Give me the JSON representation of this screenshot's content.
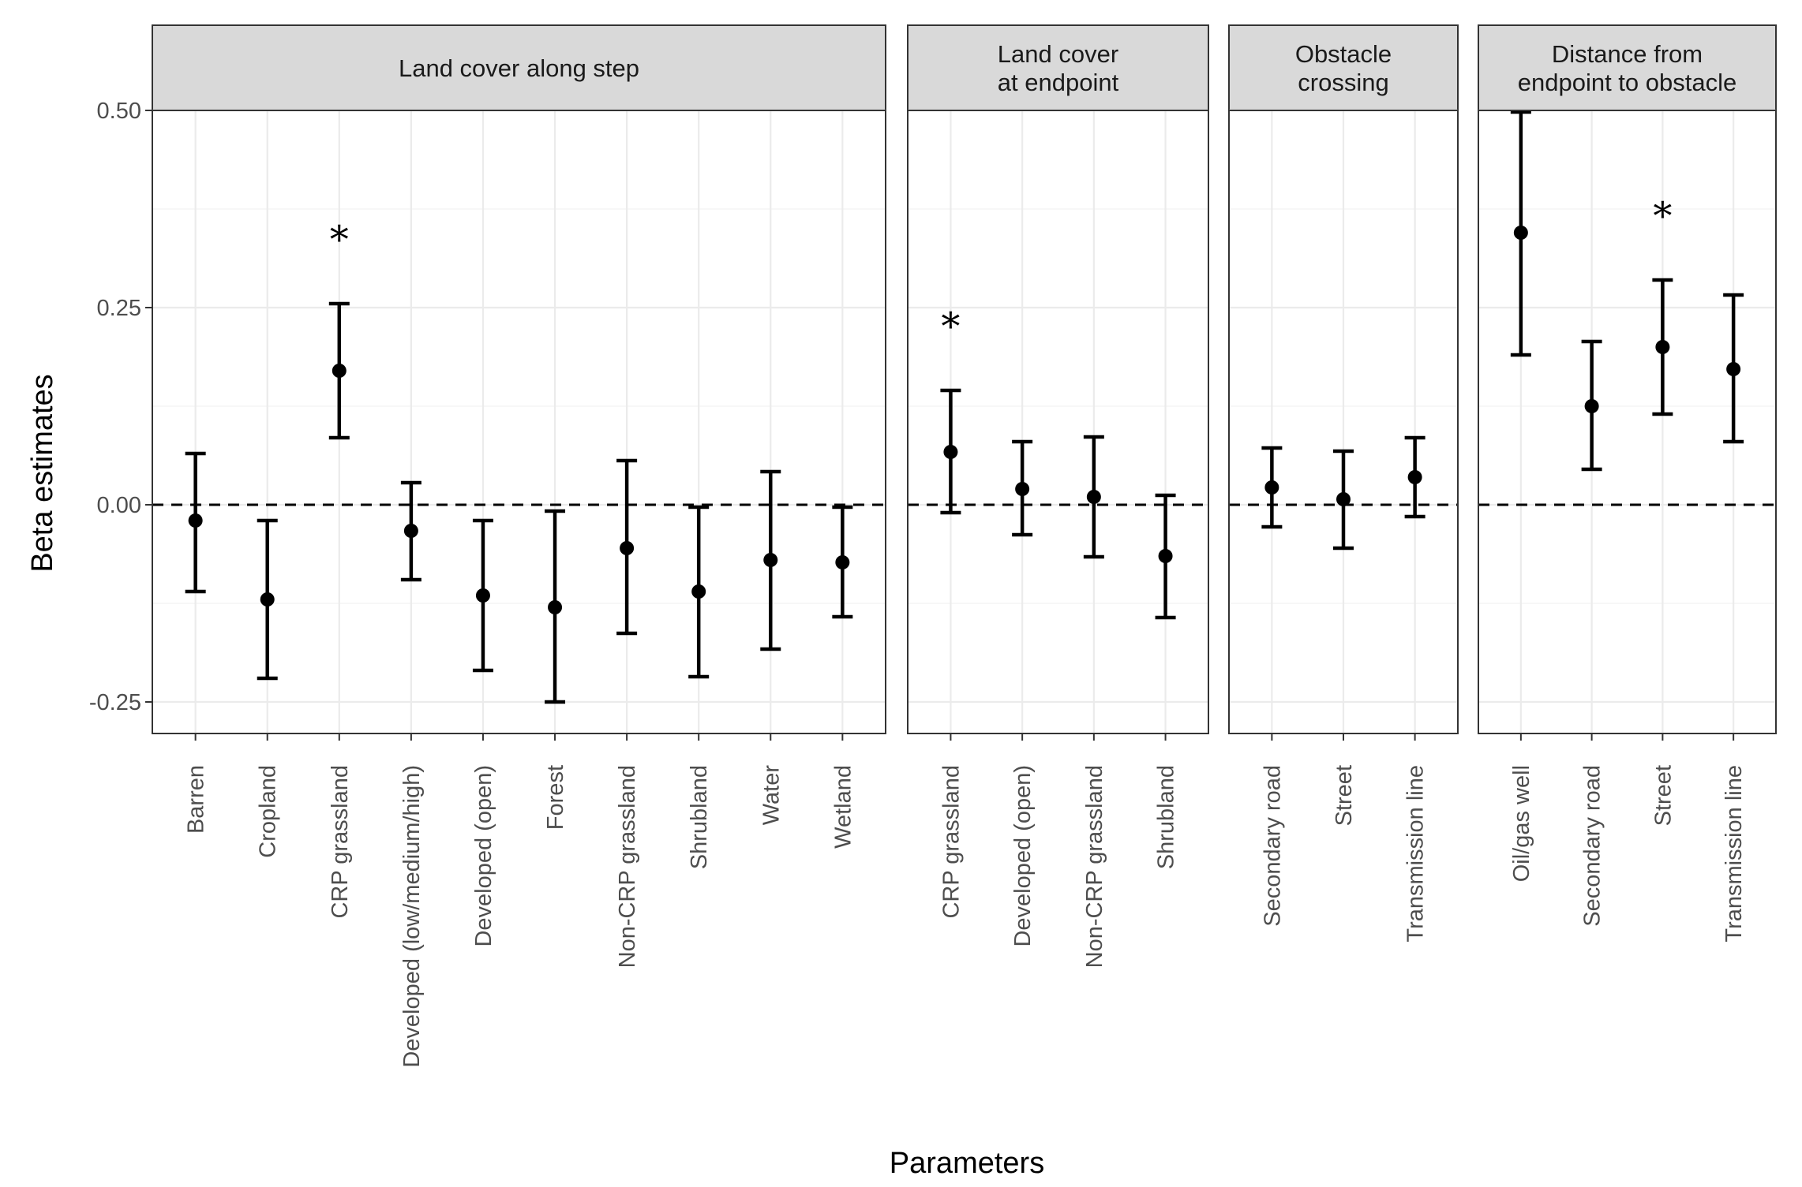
{
  "chart_data": {
    "type": "errorbar",
    "xlabel": "Parameters",
    "ylabel": "Beta estimates",
    "ylim": [
      -0.29,
      0.5
    ],
    "y_ticks": [
      "0.50",
      "0.25",
      "0.00",
      "-0.25"
    ],
    "y_tick_values": [
      0.5,
      0.25,
      0.0,
      -0.25
    ],
    "reference_line": {
      "y": 0,
      "style": "dashed"
    },
    "significance_marker": "*",
    "facets": [
      {
        "title": "Land cover along step",
        "points": [
          {
            "x": "Barren",
            "estimate": -0.02,
            "lower": -0.11,
            "upper": 0.065,
            "significant": false
          },
          {
            "x": "Cropland",
            "estimate": -0.12,
            "lower": -0.22,
            "upper": -0.02,
            "significant": false
          },
          {
            "x": "CRP grassland",
            "estimate": 0.17,
            "lower": 0.085,
            "upper": 0.255,
            "significant": true
          },
          {
            "x": "Developed (low/medium/high)",
            "estimate": -0.033,
            "lower": -0.095,
            "upper": 0.028,
            "significant": false
          },
          {
            "x": "Developed (open)",
            "estimate": -0.115,
            "lower": -0.21,
            "upper": -0.02,
            "significant": false
          },
          {
            "x": "Forest",
            "estimate": -0.13,
            "lower": -0.25,
            "upper": -0.008,
            "significant": false
          },
          {
            "x": "Non-CRP grassland",
            "estimate": -0.055,
            "lower": -0.163,
            "upper": 0.056,
            "significant": false
          },
          {
            "x": "Shrubland",
            "estimate": -0.11,
            "lower": -0.218,
            "upper": -0.003,
            "significant": false
          },
          {
            "x": "Water",
            "estimate": -0.07,
            "lower": -0.183,
            "upper": 0.042,
            "significant": false
          },
          {
            "x": "Wetland",
            "estimate": -0.073,
            "lower": -0.142,
            "upper": -0.003,
            "significant": false
          }
        ]
      },
      {
        "title": "Land cover\nat endpoint",
        "points": [
          {
            "x": "CRP grassland",
            "estimate": 0.067,
            "lower": -0.01,
            "upper": 0.145,
            "significant": true
          },
          {
            "x": "Developed (open)",
            "estimate": 0.02,
            "lower": -0.038,
            "upper": 0.08,
            "significant": false
          },
          {
            "x": "Non-CRP grassland",
            "estimate": 0.01,
            "lower": -0.066,
            "upper": 0.086,
            "significant": false
          },
          {
            "x": "Shrubland",
            "estimate": -0.065,
            "lower": -0.143,
            "upper": 0.012,
            "significant": false
          }
        ]
      },
      {
        "title": "Obstacle\ncrossing",
        "points": [
          {
            "x": "Secondary road",
            "estimate": 0.022,
            "lower": -0.028,
            "upper": 0.072,
            "significant": false
          },
          {
            "x": "Street",
            "estimate": 0.007,
            "lower": -0.055,
            "upper": 0.068,
            "significant": false
          },
          {
            "x": "Transmission line",
            "estimate": 0.035,
            "lower": -0.015,
            "upper": 0.085,
            "significant": false
          }
        ]
      },
      {
        "title": "Distance from\nendpoint to obstacle",
        "points": [
          {
            "x": "Oil/gas well",
            "estimate": 0.345,
            "lower": 0.19,
            "upper": 0.498,
            "significant": false
          },
          {
            "x": "Secondary road",
            "estimate": 0.125,
            "lower": 0.045,
            "upper": 0.207,
            "significant": false
          },
          {
            "x": "Street",
            "estimate": 0.2,
            "lower": 0.115,
            "upper": 0.285,
            "significant": true
          },
          {
            "x": "Transmission line",
            "estimate": 0.172,
            "lower": 0.08,
            "upper": 0.266,
            "significant": false
          }
        ]
      }
    ],
    "grid": true,
    "colors": {
      "points": "#000000",
      "strip_fill": "#d9d9d9",
      "panel_border": "#333333",
      "grid": "#ebebeb"
    }
  }
}
